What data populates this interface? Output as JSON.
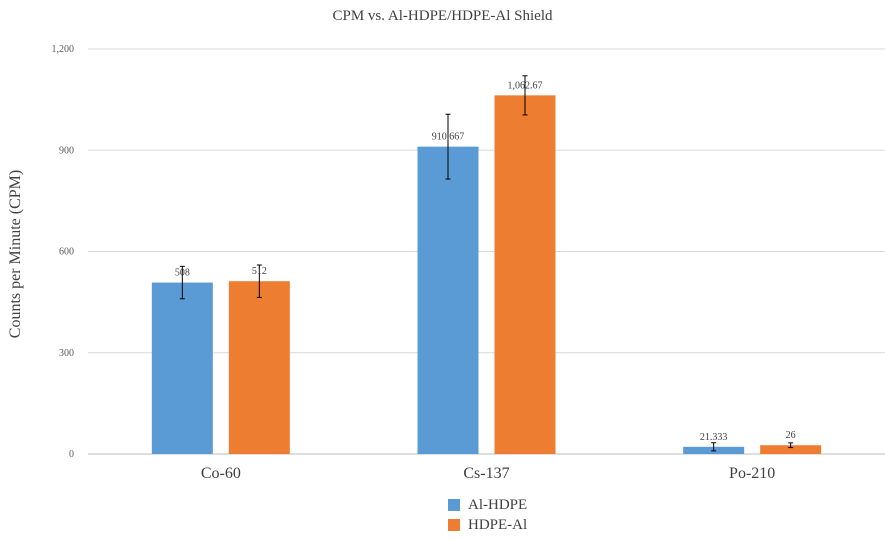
{
  "chart_data": {
    "type": "bar",
    "title": "CPM vs. Al-HDPE/HDPE-Al Shield",
    "xlabel": "",
    "ylabel": "Counts per Minute (CPM)",
    "ylim": [
      0,
      1200
    ],
    "yticks": [
      0,
      300,
      600,
      900,
      1200
    ],
    "ytick_labels": [
      "0",
      "300",
      "600",
      "900",
      "1,200"
    ],
    "grid": true,
    "legend_position": "bottom",
    "categories": [
      "Co-60",
      "Cs-137",
      "Po-210"
    ],
    "series": [
      {
        "name": "Al-HDPE",
        "color": "#5B9BD5",
        "values": [
          508,
          910.667,
          21.333
        ],
        "value_labels": [
          "508",
          "910.667",
          "21.333"
        ],
        "error": [
          48,
          96,
          12
        ]
      },
      {
        "name": "HDPE-Al",
        "color": "#ED7D31",
        "values": [
          512,
          1062.67,
          26
        ],
        "value_labels": [
          "512",
          "1,062.67",
          "26"
        ],
        "error": [
          48,
          58,
          7
        ]
      }
    ]
  }
}
